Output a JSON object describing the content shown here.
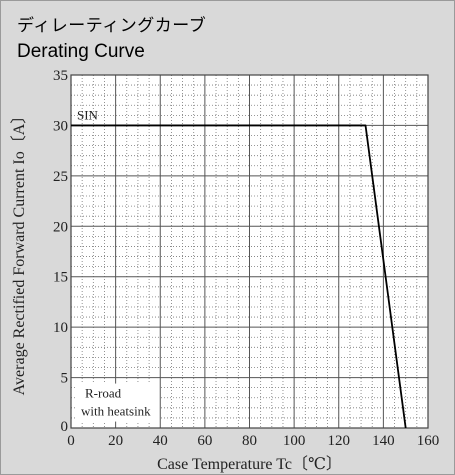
{
  "header": {
    "title_jp": "ディレーティングカーブ",
    "title_en": "Derating Curve"
  },
  "chart_data": {
    "type": "line",
    "title": "Derating Curve",
    "xlabel": "Case Temperature  Tc〔℃〕",
    "ylabel": "Average Rectified Forward Current  Io〔A〕",
    "xlim": [
      0,
      160
    ],
    "ylim": [
      0,
      35
    ],
    "x_major_ticks": [
      0,
      20,
      40,
      60,
      80,
      100,
      120,
      140,
      160
    ],
    "y_major_ticks": [
      0,
      5,
      10,
      15,
      20,
      25,
      30,
      35
    ],
    "x_minor_step": 5,
    "y_minor_step": 1,
    "grid": true,
    "series": [
      {
        "name": "SIN",
        "x": [
          0,
          132,
          150
        ],
        "y": [
          30,
          30,
          0
        ]
      }
    ],
    "annotations": [
      {
        "text": "SIN"
      },
      {
        "text": "R-road"
      },
      {
        "text": "with heatsink"
      }
    ],
    "colors": {
      "line": "#000000",
      "grid": "#555555",
      "plot_bg": "#ffffff"
    }
  }
}
